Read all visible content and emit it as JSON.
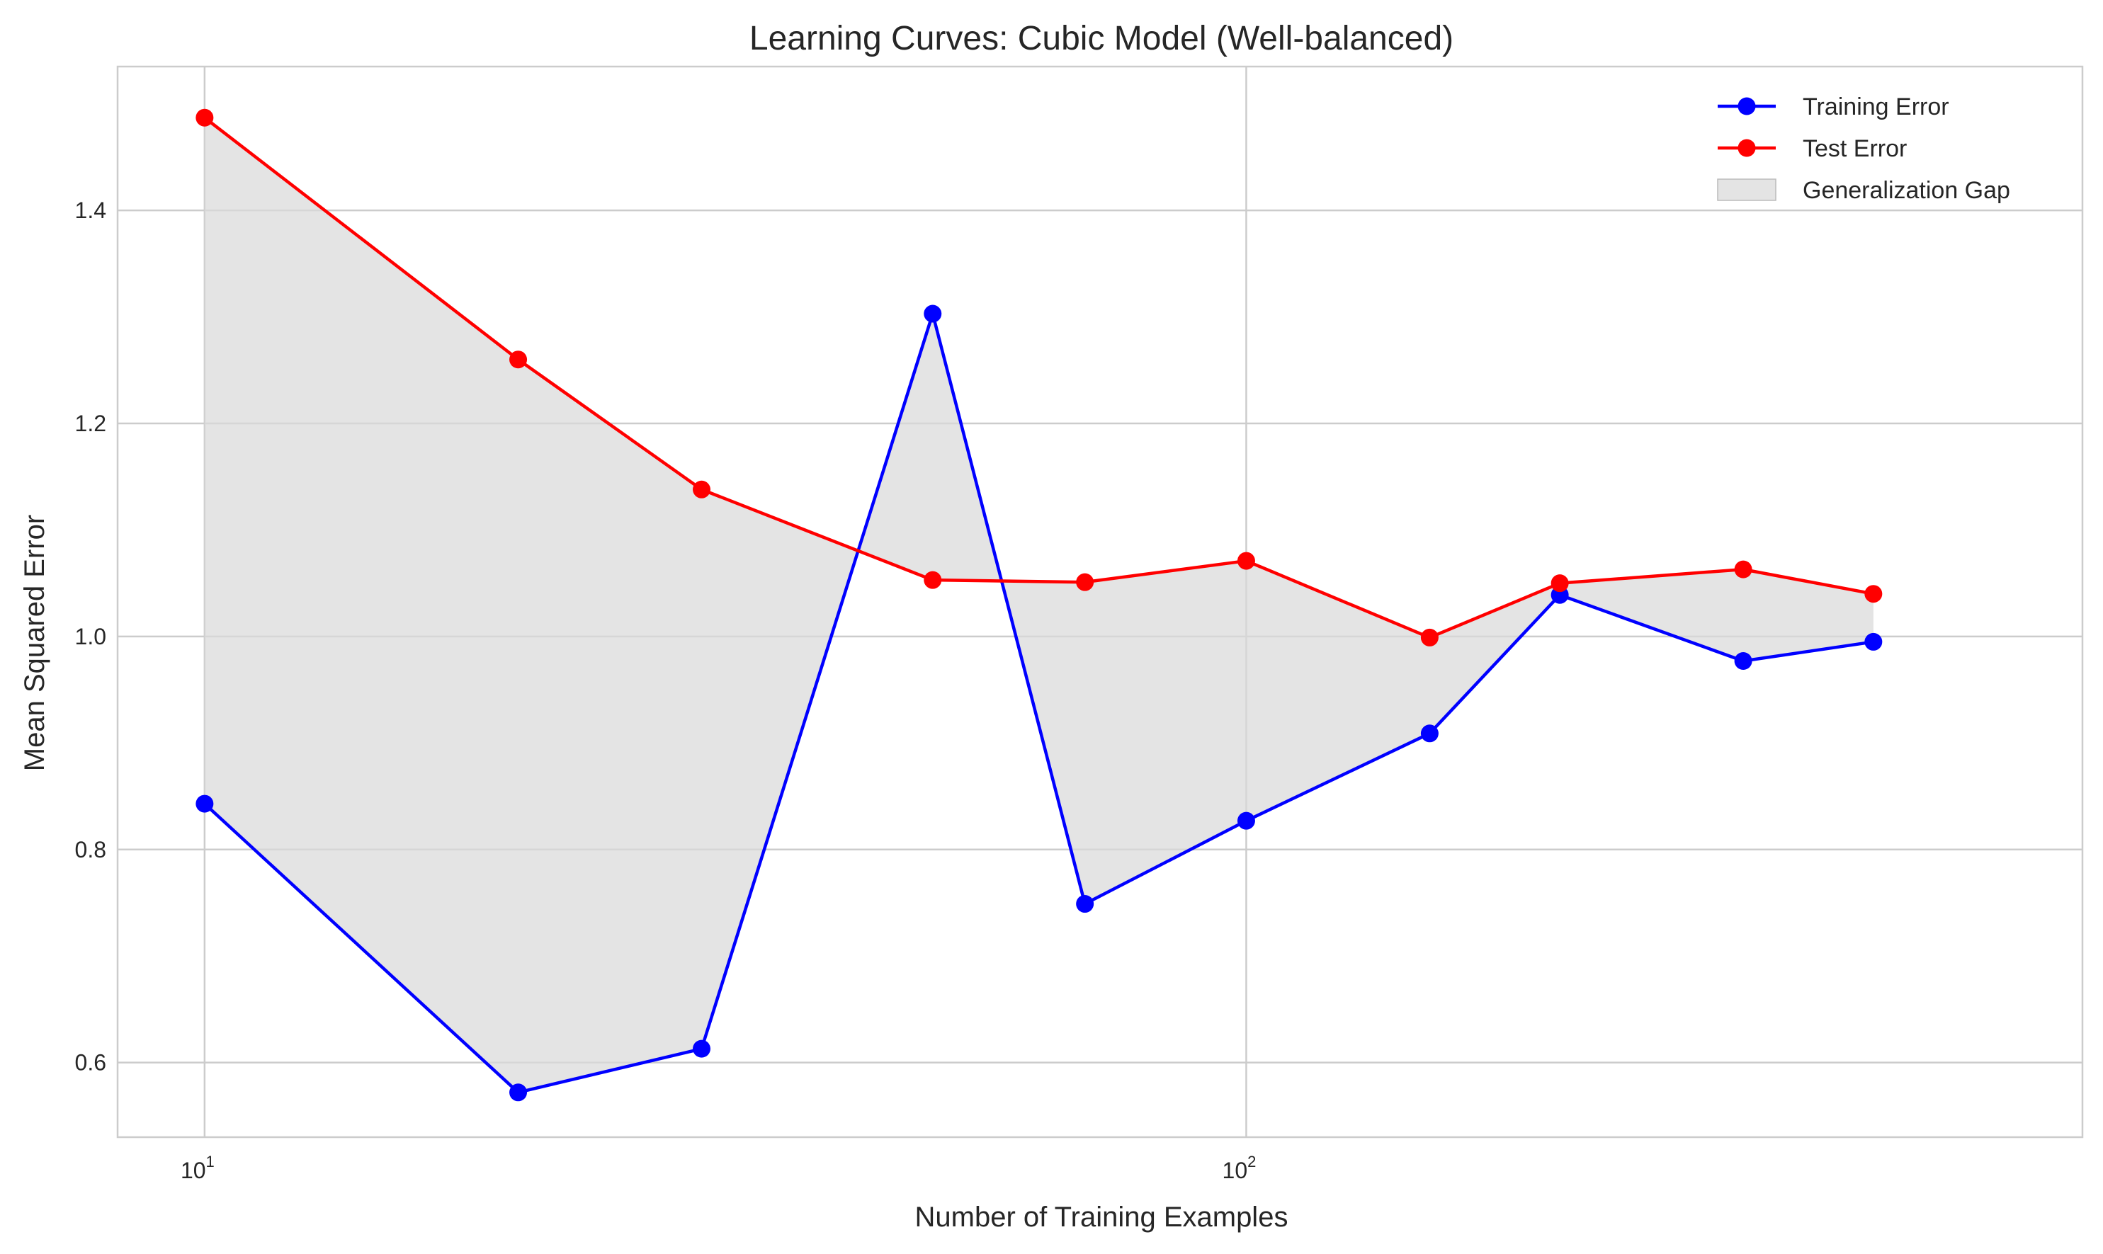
{
  "chart_data": {
    "type": "line",
    "title": "Learning Curves: Cubic Model (Well-balanced)",
    "xlabel": "Number of Training Examples",
    "ylabel": "Mean Squared Error",
    "x_scale": "log",
    "xlim": [
      8.25,
      635
    ],
    "ylim": [
      0.53,
      1.535
    ],
    "x_ticks": [
      {
        "base": "10",
        "exp": "1",
        "value": 10
      },
      {
        "base": "10",
        "exp": "2",
        "value": 100
      }
    ],
    "y_ticks": [
      {
        "label": "0.6",
        "value": 0.6
      },
      {
        "label": "0.8",
        "value": 0.8
      },
      {
        "label": "1.0",
        "value": 1.0
      },
      {
        "label": "1.2",
        "value": 1.2
      },
      {
        "label": "1.4",
        "value": 1.4
      }
    ],
    "grid": true,
    "legend_position": "top-right",
    "x": [
      10,
      20,
      30,
      50,
      70,
      100,
      150,
      200,
      300,
      400
    ],
    "series": [
      {
        "name": "Training Error",
        "color": "#0000ff",
        "values": [
          0.843,
          0.572,
          0.613,
          1.303,
          0.749,
          0.827,
          0.909,
          1.039,
          0.977,
          0.995
        ]
      },
      {
        "name": "Test Error",
        "color": "#ff0000",
        "values": [
          1.487,
          1.26,
          1.138,
          1.053,
          1.051,
          1.071,
          0.999,
          1.05,
          1.063,
          1.04
        ]
      }
    ],
    "fill_between": {
      "name": "Generalization Gap",
      "color": "#d9d9d9",
      "between": [
        "Training Error",
        "Test Error"
      ]
    }
  }
}
